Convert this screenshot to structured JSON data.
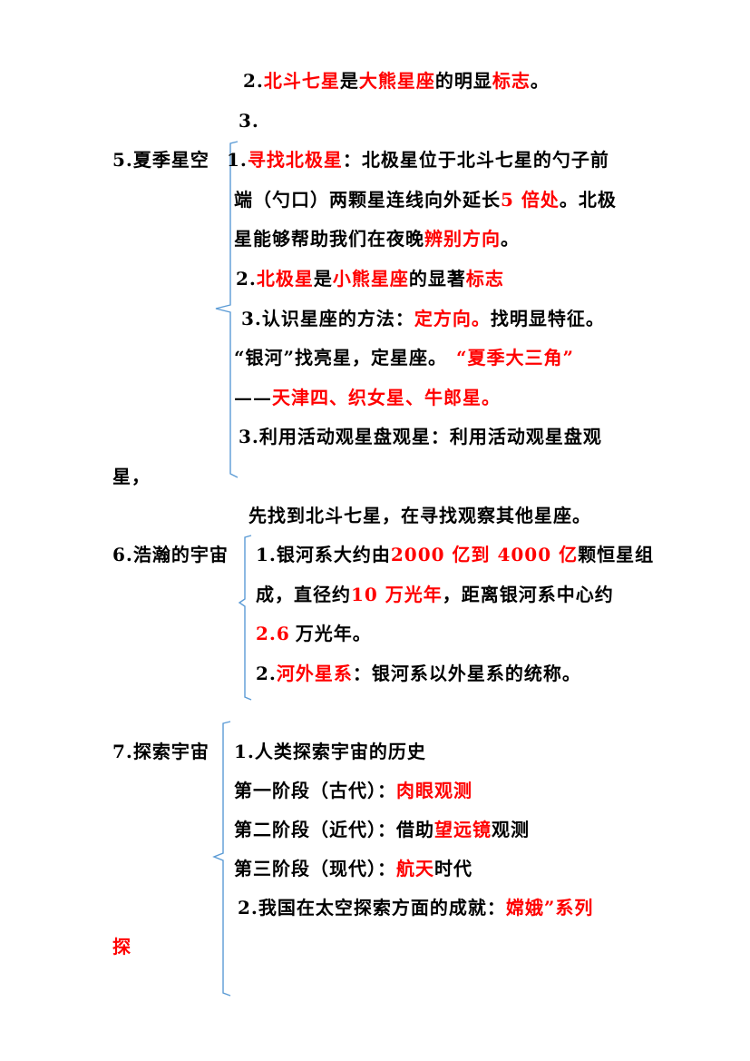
{
  "sec4": {
    "l2": {
      "num": "2.",
      "s1": "北斗七星",
      "t1": "是",
      "s2": "大熊星座",
      "t2": "的明显",
      "s3": "标志",
      "t3": "。"
    },
    "l3": {
      "num": "3."
    }
  },
  "sec5": {
    "title": "5.夏季星空",
    "i1a": {
      "num": "1.",
      "s1": "寻找北极星",
      "t1": "：北极星位于北斗七星的勺子前"
    },
    "i1b": {
      "t1": "端（勺口）两颗星连线向外延长",
      "s1": "5 倍处",
      "t2": "。北极"
    },
    "i1c": {
      "t1": "星能够帮助我们在夜晚",
      "s1": "辨别方向",
      "t2": "。"
    },
    "i2": {
      "num": "2.",
      "s1": "北极星",
      "t1": "是",
      "s2": "小熊星座",
      "t2": "的显著",
      "s3": "标志"
    },
    "i3a": {
      "num": "3.",
      "t1": "认识星座的方法：",
      "s1": "定方向。",
      "t2": "找明显特征。"
    },
    "i3b": {
      "t1": "“银河”找亮星，定星座。",
      "s1": "“夏季大三角”"
    },
    "i3c": {
      "t1": "——",
      "s1": "天津四、织女星、牛郎星。"
    },
    "i4a": {
      "num": "3.",
      "t1": "利用活动观星盘观星：利用活动观星盘观"
    },
    "i4b": {
      "t1": "星，"
    },
    "i4c": {
      "t1": "先找到北斗七星，在寻找观察其他星座。"
    }
  },
  "sec6": {
    "title": "6.浩瀚的宇宙",
    "i1a": {
      "num": "1.",
      "t1": "银河系大约由",
      "s1": "2000 亿到 4000 亿",
      "t2": "颗恒星组"
    },
    "i1b": {
      "t1": "成，直径约",
      "s1": "10 万光年",
      "t2": "，距离银河系中心约"
    },
    "i1c": {
      "s1": "2.6",
      "t1": "万光年。"
    },
    "i2": {
      "num": "2.",
      "s1": "河外星系",
      "t1": "：银河系以外星系的统称。"
    }
  },
  "sec7": {
    "title": "7.探索宇宙",
    "i1": {
      "t1": "1.人类探索宇宙的历史"
    },
    "p1": {
      "t1": "第一阶段（古代）：",
      "s1": "肉眼观测"
    },
    "p2": {
      "t1": "第二阶段（近代）：借助",
      "s1": "望远镜",
      "t2": "观测"
    },
    "p3": {
      "t1": "第三阶段（现代）：",
      "s1": "航天",
      "t2": "时代"
    },
    "i2a": {
      "t1": "2.我国在太空探索方面的成就：",
      "s1": "嫦娥”系列"
    },
    "i2b": {
      "s1": "探"
    }
  },
  "colors": {
    "highlight": "#ff0000",
    "brace": "#5b9bd5"
  }
}
